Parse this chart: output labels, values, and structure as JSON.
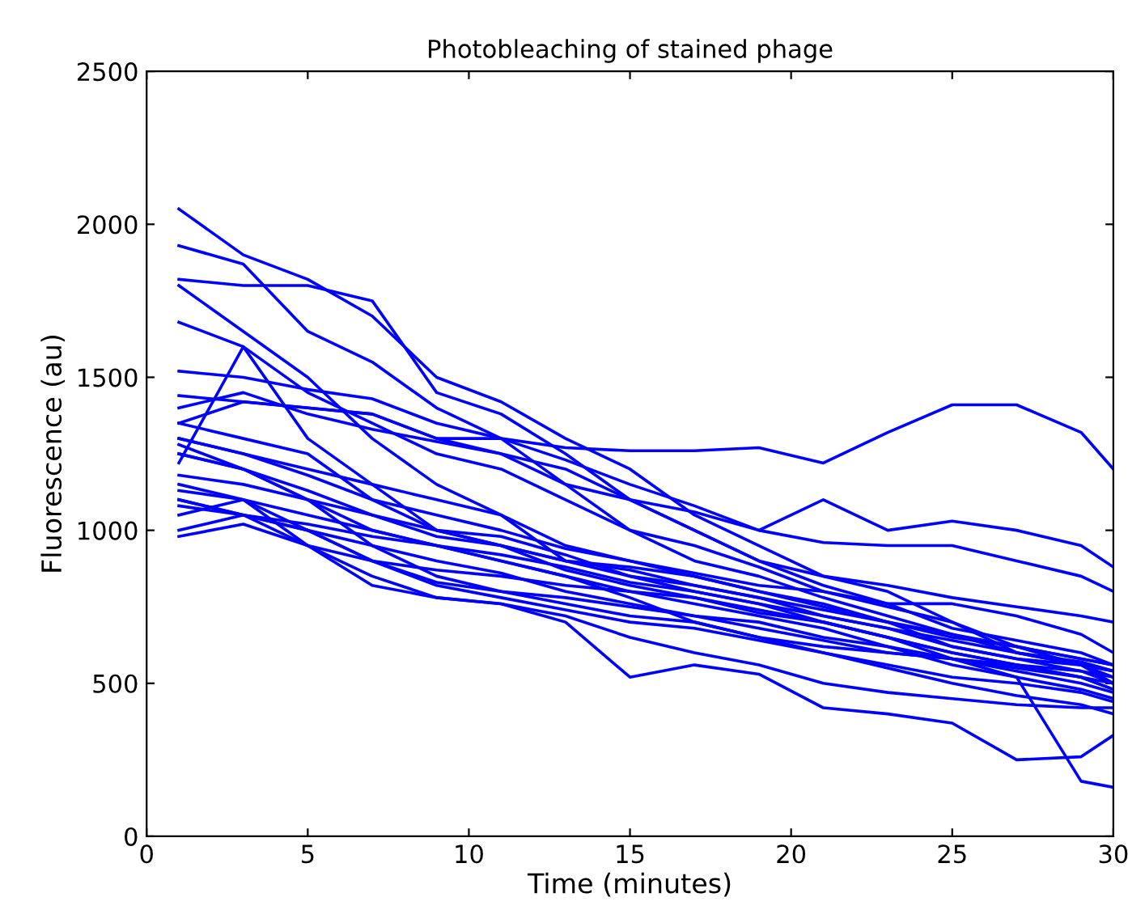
{
  "chart_data": {
    "type": "line",
    "title": "Photobleaching of stained phage",
    "xlabel": "Time (minutes)",
    "ylabel": "Fluorescence (au)",
    "x": [
      1,
      3,
      5,
      7,
      9,
      11,
      13,
      15,
      17,
      19,
      21,
      23,
      25,
      27,
      29,
      30
    ],
    "xlim": [
      0,
      30
    ],
    "xticks": [
      0,
      5,
      10,
      15,
      20,
      25,
      30
    ],
    "ylim": [
      0,
      2500
    ],
    "yticks": [
      0,
      500,
      1000,
      1500,
      2000,
      2500
    ],
    "grid": false,
    "legend": false,
    "marker": "none",
    "line_style": "solid",
    "series": [
      {
        "color": "#0000ff",
        "values": [
          2050,
          1900,
          1820,
          1700,
          1500,
          1420,
          1300,
          1200,
          1050,
          950,
          850,
          800,
          700,
          620,
          560,
          500
        ]
      },
      {
        "color": "#0000ff",
        "values": [
          1930,
          1870,
          1650,
          1550,
          1400,
          1300,
          1150,
          1000,
          950,
          880,
          800,
          750,
          700,
          600,
          570,
          540
        ]
      },
      {
        "color": "#0000ff",
        "values": [
          1820,
          1800,
          1800,
          1750,
          1450,
          1380,
          1250,
          1100,
          1000,
          900,
          820,
          760,
          680,
          640,
          600,
          560
        ]
      },
      {
        "color": "#0000ff",
        "values": [
          1800,
          1650,
          1500,
          1300,
          1150,
          1050,
          900,
          880,
          850,
          800,
          760,
          700,
          620,
          580,
          540,
          500
        ]
      },
      {
        "color": "#0000ff",
        "values": [
          1680,
          1600,
          1450,
          1350,
          1250,
          1200,
          1100,
          1000,
          900,
          850,
          780,
          720,
          660,
          600,
          560,
          520
        ]
      },
      {
        "color": "#0000ff",
        "values": [
          1350,
          1420,
          1400,
          1380,
          1300,
          1300,
          1270,
          1260,
          1260,
          1270,
          1220,
          1320,
          1410,
          1410,
          1320,
          1200
        ]
      },
      {
        "color": "#0000ff",
        "values": [
          1520,
          1500,
          1460,
          1430,
          1350,
          1300,
          1230,
          1150,
          1080,
          1000,
          1100,
          1000,
          1030,
          1000,
          950,
          880
        ]
      },
      {
        "color": "#0000ff",
        "values": [
          1440,
          1420,
          1400,
          1380,
          1300,
          1250,
          1150,
          1100,
          1060,
          1000,
          960,
          950,
          950,
          900,
          850,
          800
        ]
      },
      {
        "color": "#0000ff",
        "values": [
          1400,
          1450,
          1380,
          1330,
          1290,
          1250,
          1200,
          1100,
          1000,
          900,
          850,
          820,
          780,
          750,
          720,
          700
        ]
      },
      {
        "color": "#0000ff",
        "values": [
          1300,
          1250,
          1200,
          1150,
          1100,
          1050,
          950,
          900,
          850,
          800,
          750,
          700,
          650,
          620,
          580,
          560
        ]
      },
      {
        "color": "#0000ff",
        "values": [
          1220,
          1600,
          1300,
          1150,
          1000,
          950,
          900,
          870,
          820,
          780,
          720,
          680,
          620,
          580,
          560,
          540
        ]
      },
      {
        "color": "#0000ff",
        "values": [
          1350,
          1300,
          1250,
          1100,
          1000,
          980,
          920,
          850,
          800,
          760,
          700,
          650,
          600,
          560,
          520,
          480
        ]
      },
      {
        "color": "#0000ff",
        "values": [
          1250,
          1200,
          1130,
          1050,
          1000,
          950,
          870,
          820,
          780,
          730,
          700,
          650,
          580,
          540,
          500,
          470
        ]
      },
      {
        "color": "#0000ff",
        "values": [
          1180,
          1150,
          1100,
          1050,
          980,
          950,
          900,
          850,
          820,
          780,
          740,
          700,
          660,
          620,
          580,
          560
        ]
      },
      {
        "color": "#0000ff",
        "values": [
          1130,
          1100,
          1050,
          1000,
          950,
          920,
          880,
          830,
          800,
          760,
          720,
          680,
          640,
          600,
          560,
          540
        ]
      },
      {
        "color": "#0000ff",
        "values": [
          1100,
          1050,
          1000,
          900,
          870,
          850,
          820,
          800,
          780,
          740,
          700,
          650,
          600,
          560,
          520,
          500
        ]
      },
      {
        "color": "#0000ff",
        "values": [
          1080,
          1050,
          1020,
          980,
          950,
          900,
          850,
          780,
          700,
          650,
          620,
          600,
          580,
          550,
          520,
          480
        ]
      },
      {
        "color": "#0000ff",
        "values": [
          1050,
          1100,
          1000,
          950,
          900,
          860,
          800,
          760,
          720,
          680,
          640,
          600,
          580,
          560,
          540,
          520
        ]
      },
      {
        "color": "#0000ff",
        "values": [
          1150,
          1100,
          950,
          900,
          830,
          800,
          760,
          720,
          700,
          650,
          600,
          550,
          500,
          460,
          430,
          400
        ]
      },
      {
        "color": "#0000ff",
        "values": [
          1280,
          1200,
          1100,
          950,
          850,
          800,
          780,
          750,
          720,
          700,
          650,
          620,
          560,
          520,
          480,
          450
        ]
      },
      {
        "color": "#0000ff",
        "values": [
          1000,
          1050,
          1000,
          900,
          820,
          780,
          740,
          700,
          680,
          640,
          600,
          560,
          520,
          500,
          470,
          440
        ]
      },
      {
        "color": "#0000ff",
        "values": [
          980,
          1020,
          950,
          850,
          780,
          760,
          720,
          650,
          600,
          560,
          500,
          470,
          450,
          430,
          420,
          420
        ]
      },
      {
        "color": "#0000ff",
        "values": [
          1100,
          1050,
          950,
          820,
          780,
          760,
          700,
          520,
          560,
          530,
          420,
          400,
          370,
          250,
          260,
          330
        ]
      },
      {
        "color": "#0000ff",
        "values": [
          1250,
          1200,
          1100,
          1000,
          950,
          900,
          850,
          800,
          760,
          720,
          680,
          620,
          580,
          520,
          180,
          160
        ]
      },
      {
        "color": "#0000ff",
        "values": [
          1300,
          1250,
          1180,
          1100,
          1050,
          1000,
          940,
          900,
          860,
          820,
          800,
          760,
          760,
          720,
          660,
          600
        ]
      }
    ]
  }
}
